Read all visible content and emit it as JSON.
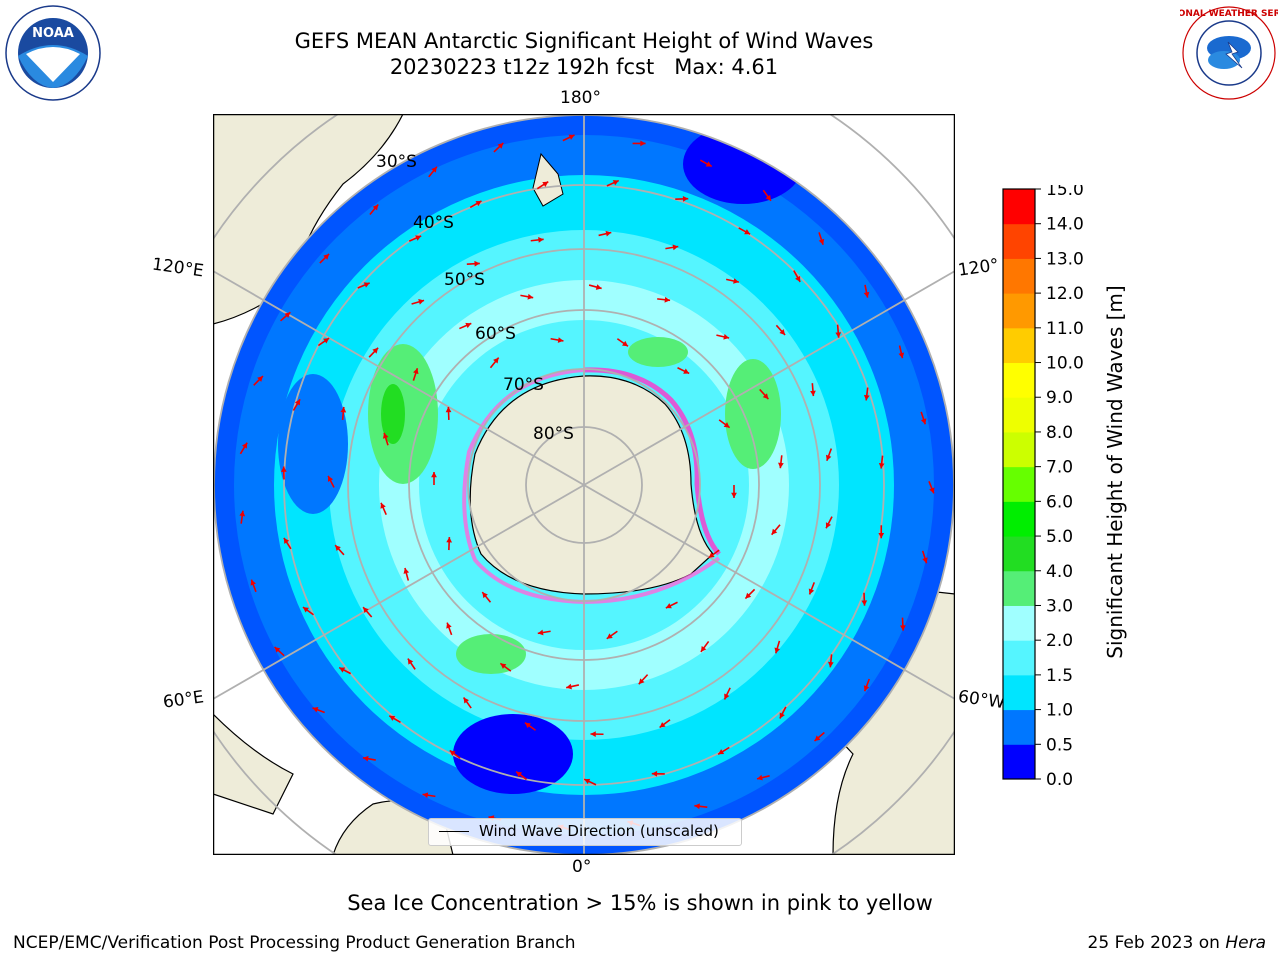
{
  "header": {
    "title_line1": "GEFS MEAN Antarctic Significant Height of Wind Waves",
    "title_line2": "20230223 t12z 192h fcst   Max: 4.61",
    "left_logo_text": "NOAA",
    "right_logo_text": "NATIONAL WEATHER SERVICE"
  },
  "map": {
    "projection": "south-polar-stereographic",
    "longitude_labels": {
      "top": "180°",
      "bottom": "0°",
      "upper_left": "120°E",
      "lower_left": "60°E",
      "upper_right": "120°",
      "lower_right": "60°W"
    },
    "latitude_labels": [
      "30°S",
      "40°S",
      "50°S",
      "60°S",
      "70°S",
      "80°S"
    ],
    "legend_label": "Wind Wave Direction (unscaled)",
    "arrow_color": "#ee0000",
    "land_color": "#eeecd9",
    "grid_color": "#b0b0b0"
  },
  "colorbar": {
    "title": "Significant Height of Wind Waves [m]",
    "ticks": [
      "0.0",
      "0.5",
      "1.0",
      "1.5",
      "2.0",
      "3.0",
      "4.0",
      "5.0",
      "6.0",
      "7.0",
      "8.0",
      "9.0",
      "10.0",
      "11.0",
      "12.0",
      "13.0",
      "14.0",
      "15.0"
    ],
    "colors": [
      "#0000ff",
      "#0077ff",
      "#00e5ff",
      "#55f5ff",
      "#a0ffff",
      "#55ee77",
      "#22dd22",
      "#00ee00",
      "#66ff00",
      "#ccff00",
      "#eeff00",
      "#ffff00",
      "#ffcc00",
      "#ff9900",
      "#ff7700",
      "#ff4400",
      "#ff0000"
    ]
  },
  "footer": {
    "note": "Sea Ice Concentration > 15% is shown in pink to yellow",
    "credit_left": "NCEP/EMC/Verification Post Processing Product Generation Branch",
    "credit_date": "25 Feb 2023 on ",
    "credit_machine": "Hera"
  }
}
